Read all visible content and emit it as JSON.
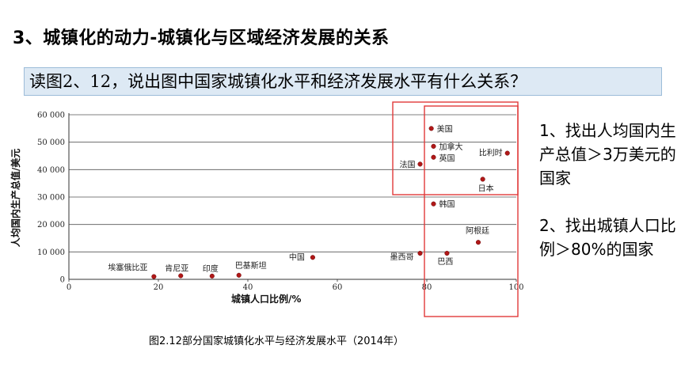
{
  "slide": {
    "title": "3、城镇化的动力-城镇化与区域经济发展的关系",
    "question": "读图2、12，说出图中国家城镇化水平和经济发展水平有什么关系？",
    "caption": "图2.12部分国家城镇化水平与经济发展水平（2014年）"
  },
  "notes": [
    "1、找出人均国内生产总值＞3万美元的国家",
    "2、找出城镇人口比例＞80%的国家"
  ],
  "colors": {
    "point": "#b01818",
    "highlight_box": "#e03a3a",
    "question_bg": "#dde9f4"
  },
  "chart_data": {
    "type": "scatter",
    "xlabel": "城镇人口比例/%",
    "ylabel": "人均国内生产总值/美元",
    "xlim": [
      0,
      100
    ],
    "ylim": [
      0,
      60000
    ],
    "x_ticks": [
      "0",
      "20",
      "40",
      "60",
      "80",
      "100"
    ],
    "y_ticks": [
      "0",
      "10 000",
      "20 000",
      "30 000",
      "40 000",
      "50 000",
      "60 000"
    ],
    "grid": "horizontal",
    "points": [
      {
        "label": "美国",
        "x": 81,
        "y": 55000
      },
      {
        "label": "加拿大",
        "x": 81.5,
        "y": 48500
      },
      {
        "label": "英国",
        "x": 81.5,
        "y": 44500
      },
      {
        "label": "比利时",
        "x": 98,
        "y": 46000
      },
      {
        "label": "法国",
        "x": 78.5,
        "y": 42000
      },
      {
        "label": "日本",
        "x": 92.5,
        "y": 36500
      },
      {
        "label": "韩国",
        "x": 81.5,
        "y": 27500
      },
      {
        "label": "阿根廷",
        "x": 91.5,
        "y": 13500
      },
      {
        "label": "墨西哥",
        "x": 78.5,
        "y": 9500
      },
      {
        "label": "巴西",
        "x": 84.5,
        "y": 9500
      },
      {
        "label": "中国",
        "x": 54.5,
        "y": 8000
      },
      {
        "label": "巴基斯坦",
        "x": 38,
        "y": 1500
      },
      {
        "label": "印度",
        "x": 32,
        "y": 1200
      },
      {
        "label": "肯尼亚",
        "x": 25,
        "y": 1300
      },
      {
        "label": "埃塞俄比亚",
        "x": 19,
        "y": 1000
      }
    ]
  }
}
